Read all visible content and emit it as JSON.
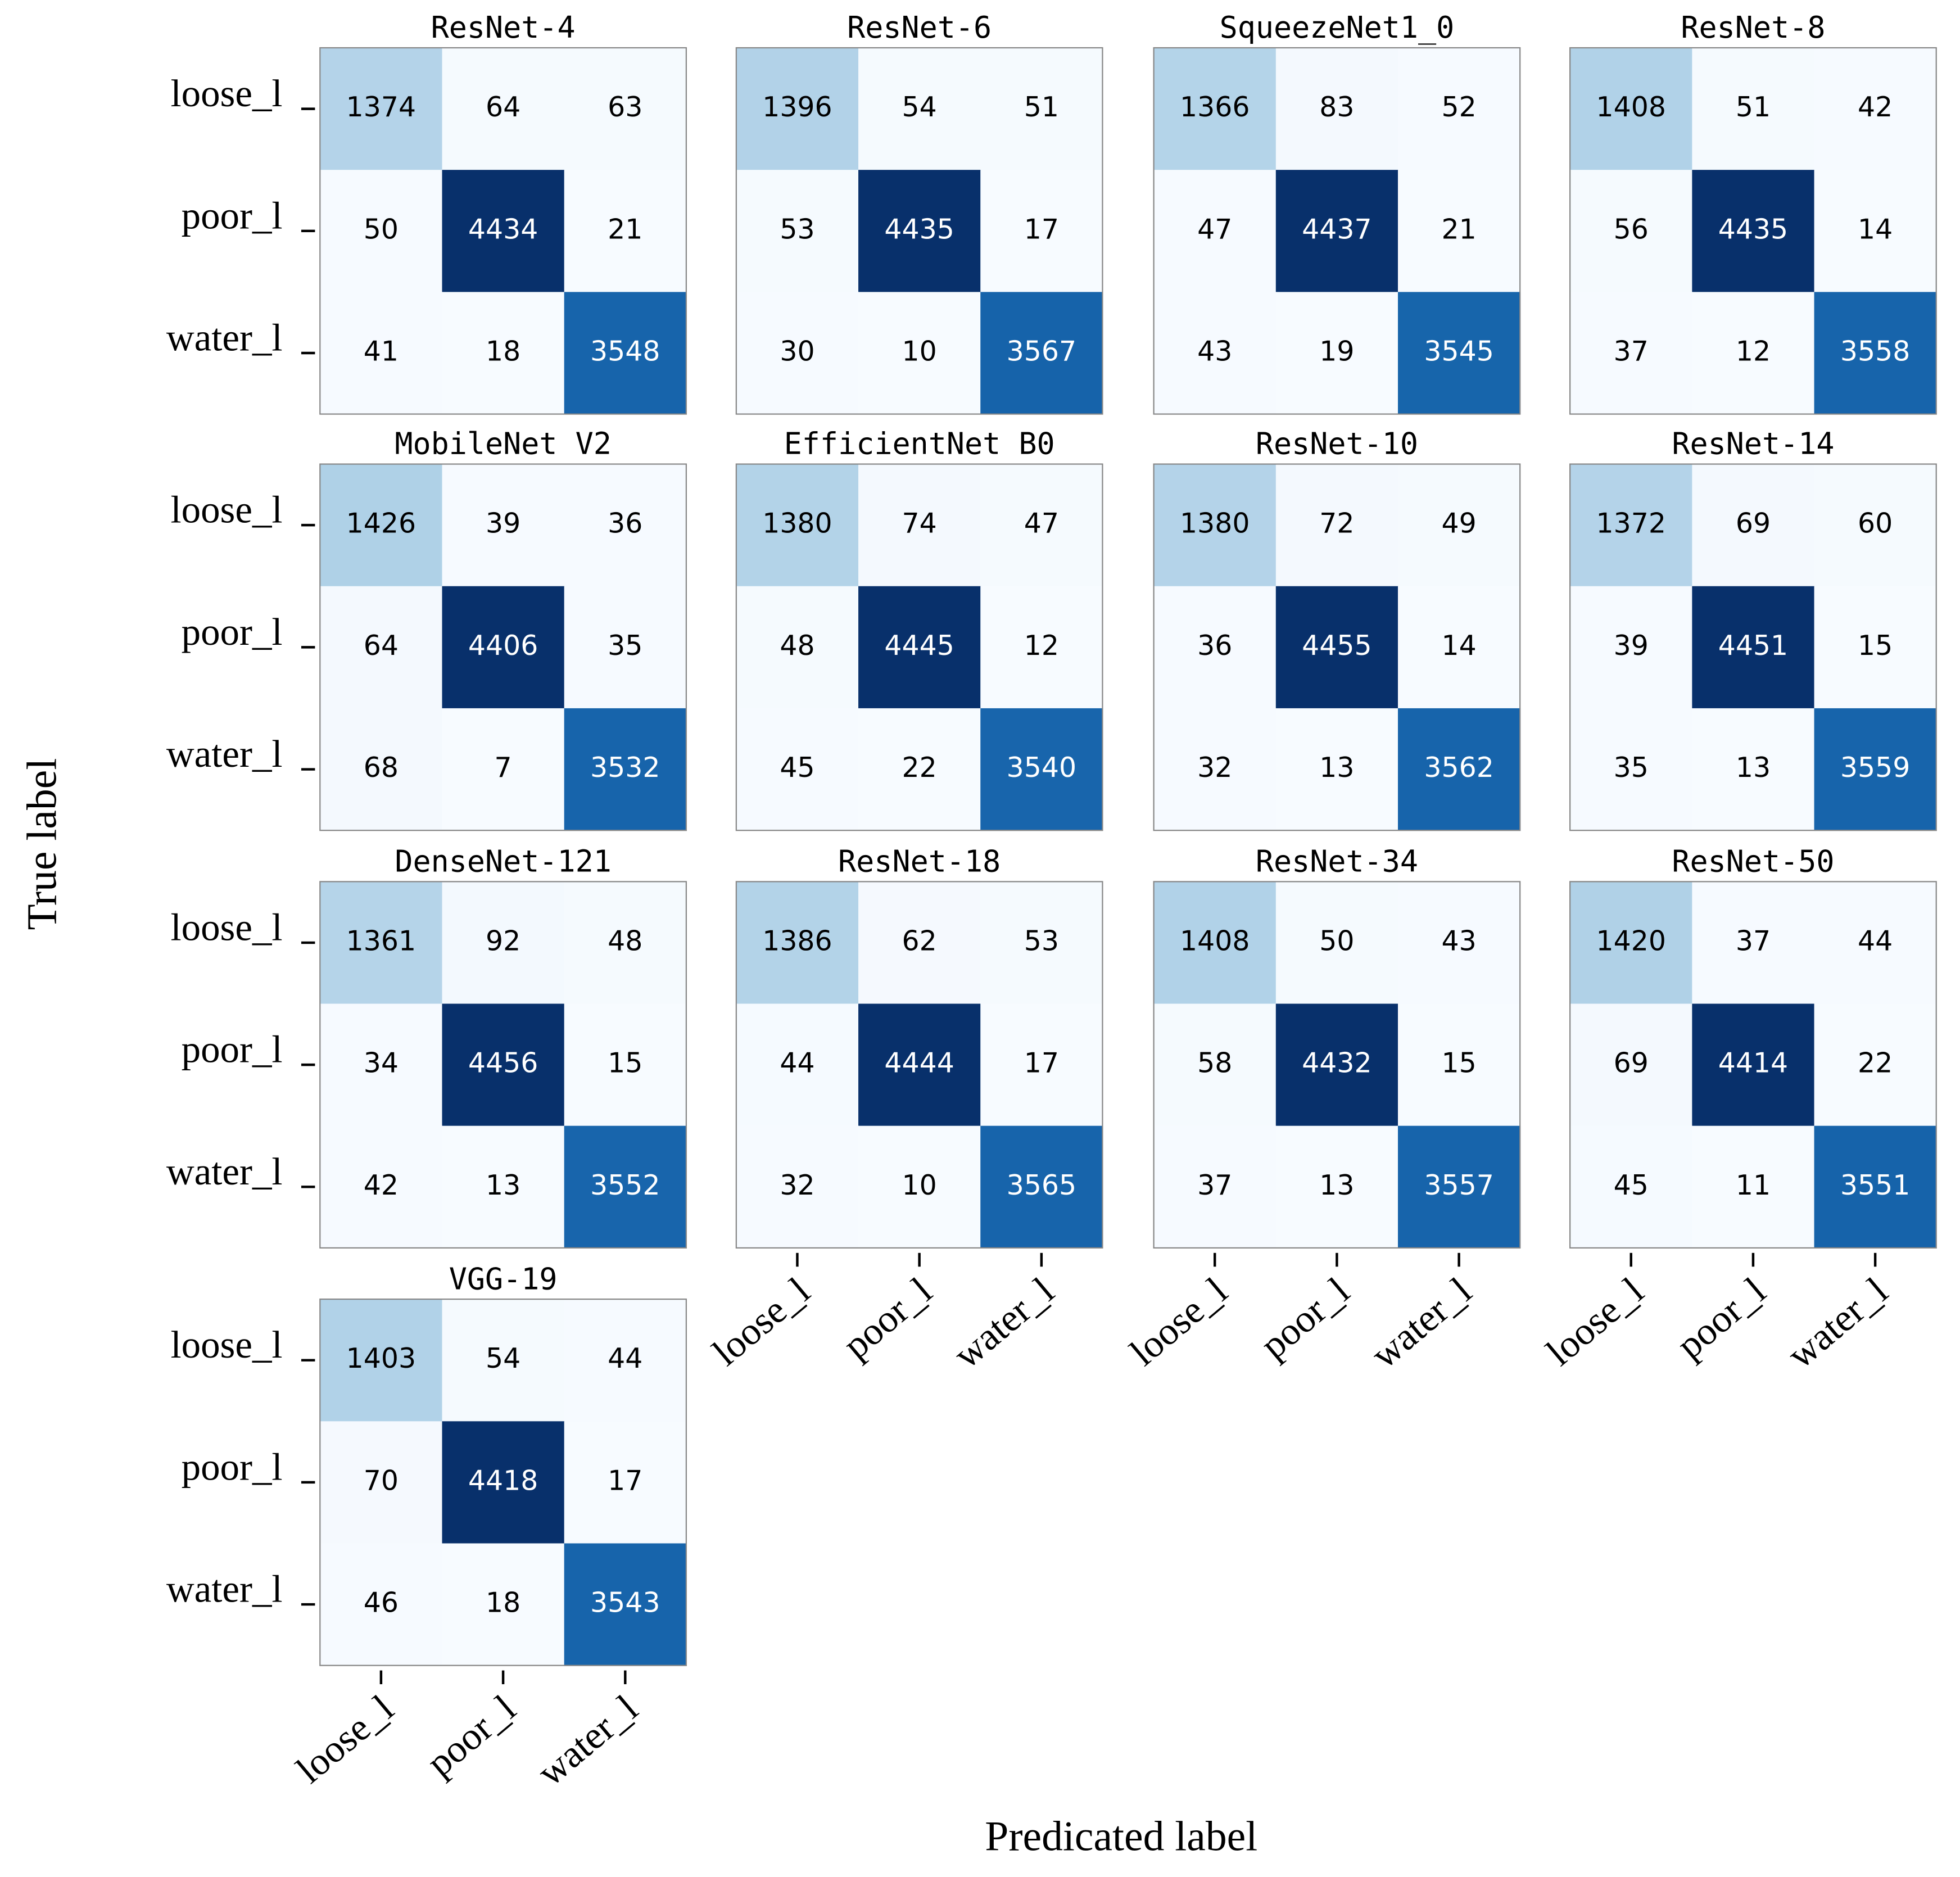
{
  "figure": {
    "xlabel": "Predicated label",
    "ylabel": "True label",
    "categories": [
      "loose_l",
      "poor_l",
      "water_l"
    ],
    "colormap": "Blues"
  },
  "chart_data": [
    {
      "type": "heatmap",
      "title": "ResNet-4",
      "values": [
        [
          1374,
          64,
          63
        ],
        [
          50,
          4434,
          21
        ],
        [
          41,
          18,
          3548
        ]
      ]
    },
    {
      "type": "heatmap",
      "title": "ResNet-6",
      "values": [
        [
          1396,
          54,
          51
        ],
        [
          53,
          4435,
          17
        ],
        [
          30,
          10,
          3567
        ]
      ]
    },
    {
      "type": "heatmap",
      "title": "SqueezeNet1_0",
      "values": [
        [
          1366,
          83,
          52
        ],
        [
          47,
          4437,
          21
        ],
        [
          43,
          19,
          3545
        ]
      ]
    },
    {
      "type": "heatmap",
      "title": "ResNet-8",
      "values": [
        [
          1408,
          51,
          42
        ],
        [
          56,
          4435,
          14
        ],
        [
          37,
          12,
          3558
        ]
      ]
    },
    {
      "type": "heatmap",
      "title": "MobileNet V2",
      "values": [
        [
          1426,
          39,
          36
        ],
        [
          64,
          4406,
          35
        ],
        [
          68,
          7,
          3532
        ]
      ]
    },
    {
      "type": "heatmap",
      "title": "EfficientNet B0",
      "values": [
        [
          1380,
          74,
          47
        ],
        [
          48,
          4445,
          12
        ],
        [
          45,
          22,
          3540
        ]
      ]
    },
    {
      "type": "heatmap",
      "title": "ResNet-10",
      "values": [
        [
          1380,
          72,
          49
        ],
        [
          36,
          4455,
          14
        ],
        [
          32,
          13,
          3562
        ]
      ]
    },
    {
      "type": "heatmap",
      "title": "ResNet-14",
      "values": [
        [
          1372,
          69,
          60
        ],
        [
          39,
          4451,
          15
        ],
        [
          35,
          13,
          3559
        ]
      ]
    },
    {
      "type": "heatmap",
      "title": "DenseNet-121",
      "values": [
        [
          1361,
          92,
          48
        ],
        [
          34,
          4456,
          15
        ],
        [
          42,
          13,
          3552
        ]
      ]
    },
    {
      "type": "heatmap",
      "title": "ResNet-18",
      "values": [
        [
          1386,
          62,
          53
        ],
        [
          44,
          4444,
          17
        ],
        [
          32,
          10,
          3565
        ]
      ]
    },
    {
      "type": "heatmap",
      "title": "ResNet-34",
      "values": [
        [
          1408,
          50,
          43
        ],
        [
          58,
          4432,
          15
        ],
        [
          37,
          13,
          3557
        ]
      ]
    },
    {
      "type": "heatmap",
      "title": "ResNet-50",
      "values": [
        [
          1420,
          37,
          44
        ],
        [
          69,
          4414,
          22
        ],
        [
          45,
          11,
          3551
        ]
      ]
    },
    {
      "type": "heatmap",
      "title": "VGG-19",
      "values": [
        [
          1403,
          54,
          44
        ],
        [
          70,
          4418,
          17
        ],
        [
          46,
          18,
          3543
        ]
      ]
    }
  ]
}
